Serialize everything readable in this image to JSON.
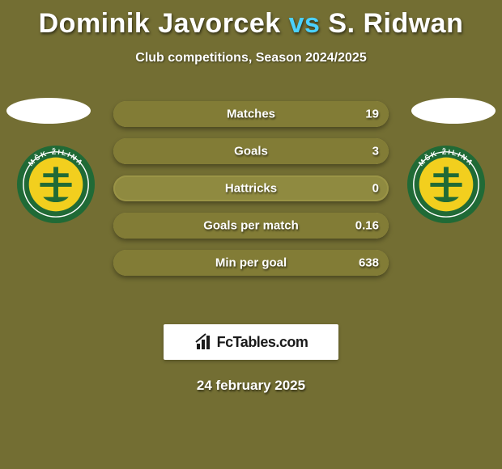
{
  "title": {
    "p1": "Dominik Javorcek",
    "vs": "vs",
    "p2": "S. Ridwan"
  },
  "subtitle": "Club competitions, Season 2024/2025",
  "accent_color": "#4bd1ff",
  "row_base_color": "#8f8a40",
  "row_fill_left_color": "#a09a4a",
  "row_fill_right_color": "#827c36",
  "crest": {
    "outer": "#206a36",
    "ring": "#ffffff",
    "inner": "#f2cf1e",
    "cross": "#206a36",
    "top_text": "MŠK ŽILINA"
  },
  "stats": [
    {
      "label": "Matches",
      "right_value": "19",
      "left_pct": 0,
      "right_pct": 100
    },
    {
      "label": "Goals",
      "right_value": "3",
      "left_pct": 0,
      "right_pct": 100
    },
    {
      "label": "Hattricks",
      "right_value": "0",
      "left_pct": 0,
      "right_pct": 0
    },
    {
      "label": "Goals per match",
      "right_value": "0.16",
      "left_pct": 0,
      "right_pct": 100
    },
    {
      "label": "Min per goal",
      "right_value": "638",
      "left_pct": 0,
      "right_pct": 100
    }
  ],
  "brand": "FcTables.com",
  "date": "24 february 2025"
}
